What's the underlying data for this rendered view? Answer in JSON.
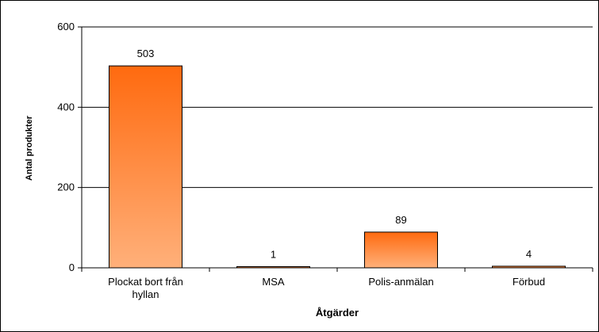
{
  "chart_data": {
    "type": "bar",
    "categories": [
      "Plockat bort från hyllan",
      "MSA",
      "Polis-anmälan",
      "Förbud"
    ],
    "category_lines": [
      [
        "Plockat bort från",
        "hyllan"
      ],
      [
        "MSA"
      ],
      [
        "Polis-anmälan"
      ],
      [
        "Förbud"
      ]
    ],
    "values": [
      503,
      1,
      89,
      4
    ],
    "data_labels": [
      "503",
      "1",
      "89",
      "4"
    ],
    "title": "",
    "xlabel": "Åtgärder",
    "ylabel": "Antal produkter",
    "ylim": [
      0,
      600
    ],
    "yticks": [
      0,
      200,
      400,
      600
    ],
    "grid": true,
    "legend": "none",
    "colors": {
      "bar_top": "#ff6a0f",
      "bar_bottom": "#ffb07a",
      "bar_border": "#000000",
      "gridline": "#000000",
      "axis": "#000000"
    }
  }
}
